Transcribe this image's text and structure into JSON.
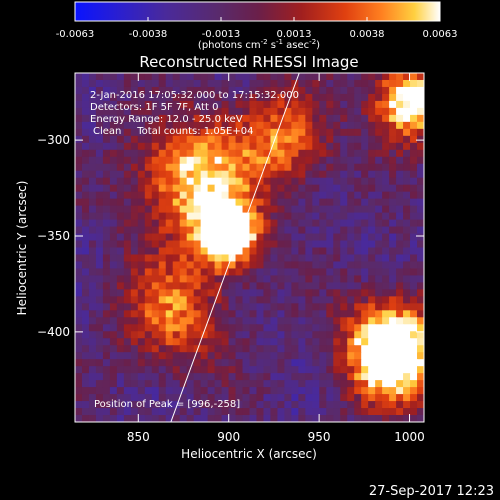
{
  "colorbar": {
    "ticks": [
      "-0.0063",
      "-0.0038",
      "-0.0013",
      "0.0013",
      "0.0038",
      "0.0063"
    ],
    "unit_parts": [
      "(photons cm",
      "-2",
      " s",
      "-1",
      " asec",
      "-2",
      ")"
    ],
    "colors": [
      "#0a14ff",
      "#2a1fd0",
      "#4a2a9a",
      "#5a2a6a",
      "#6a1f4a",
      "#a01f1f",
      "#e04010",
      "#ff8020",
      "#ffd040",
      "#ffffff"
    ]
  },
  "chart_data": {
    "type": "heatmap",
    "title": "Reconstructed RHESSI Image",
    "xlabel": "Heliocentric X (arcsec)",
    "ylabel": "Heliocentric Y (arcsec)",
    "xlim": [
      815,
      1008
    ],
    "ylim": [
      -447,
      -265
    ],
    "x_ticks": [
      850,
      900,
      950,
      1000
    ],
    "y_ticks": [
      -300,
      -350,
      -400
    ],
    "x_tick_labels": [
      "850",
      "900",
      "950",
      "1000"
    ],
    "y_tick_labels": [
      "−300",
      "−350",
      "−400"
    ],
    "color_range": [
      -0.0063,
      0.0063
    ],
    "info_lines": [
      "2-Jan-2016 17:05:32.000 to 17:15:32.000",
      "Detectors: 1F 5F 7F, Att 0",
      "Energy Range: 12.0 - 25.0 keV",
      "Clean     Total counts: 1.05E+04"
    ],
    "peak_label": "Position of Peak = [996,-258]",
    "peak": [
      996,
      -258
    ],
    "limb_line": [
      [
        868,
        -447
      ],
      [
        939,
        -265
      ]
    ],
    "intensity_features": [
      {
        "x": 900,
        "y": -350,
        "level": 0.85,
        "sigma": 12
      },
      {
        "x": 880,
        "y": -320,
        "level": 0.6,
        "sigma": 22
      },
      {
        "x": 870,
        "y": -390,
        "level": 0.45,
        "sigma": 20
      },
      {
        "x": 990,
        "y": -410,
        "level": 0.95,
        "sigma": 18
      },
      {
        "x": 1000,
        "y": -280,
        "level": 0.75,
        "sigma": 14
      },
      {
        "x": 930,
        "y": -300,
        "level": 0.45,
        "sigma": 18
      }
    ]
  },
  "footer_date": "27-Sep-2017 12:23"
}
